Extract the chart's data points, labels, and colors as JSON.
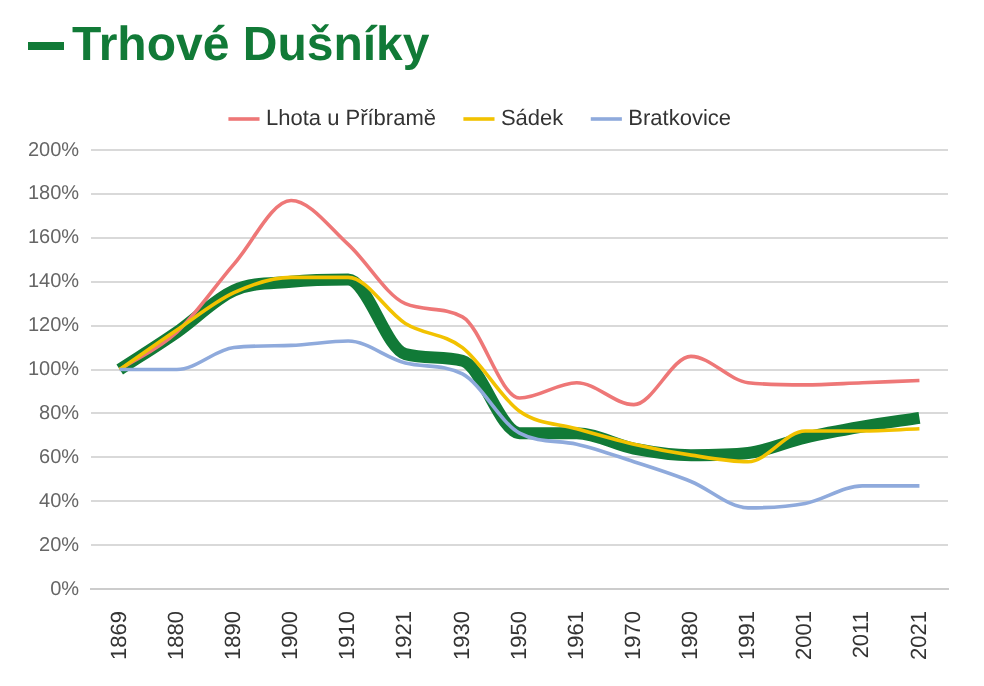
{
  "chart_data": {
    "type": "line",
    "categories": [
      "1869",
      "1880",
      "1890",
      "1900",
      "1910",
      "1921",
      "1930",
      "1950",
      "1961",
      "1970",
      "1980",
      "1991",
      "2001",
      "2011",
      "2021"
    ],
    "series": [
      {
        "name": "Trhové Dušníky",
        "color": "#117a37",
        "values": [
          100,
          117,
          136,
          140,
          141,
          107,
          104,
          71,
          71,
          64,
          61,
          62,
          69,
          74,
          78
        ]
      },
      {
        "name": "Lhota u Příbramě",
        "color": "#ee7777",
        "values": [
          100,
          117,
          148,
          177,
          157,
          130,
          124,
          87,
          94,
          84,
          106,
          94,
          93,
          94,
          95
        ]
      },
      {
        "name": "Sádek",
        "color": "#f2c200",
        "values": [
          100,
          118,
          135,
          142,
          142,
          121,
          110,
          81,
          73,
          66,
          61,
          58,
          72,
          72,
          73
        ]
      },
      {
        "name": "Bratkovice",
        "color": "#8faadc",
        "values": [
          100,
          100,
          110,
          111,
          113,
          103,
          98,
          71,
          66,
          58,
          49,
          37,
          39,
          47,
          47
        ]
      }
    ],
    "ylim": [
      0,
      200
    ],
    "yticks": [
      {
        "value": 0,
        "label": "0%"
      },
      {
        "value": 20,
        "label": "20%"
      },
      {
        "value": 40,
        "label": "40%"
      },
      {
        "value": 60,
        "label": "60%"
      },
      {
        "value": 80,
        "label": "80%"
      },
      {
        "value": 100,
        "label": "100%"
      },
      {
        "value": 120,
        "label": "120%"
      },
      {
        "value": 140,
        "label": "140%"
      },
      {
        "value": 160,
        "label": "160%"
      },
      {
        "value": 180,
        "label": "180%"
      },
      {
        "value": 200,
        "label": "200%"
      }
    ],
    "grid": "y",
    "legend": "top",
    "marker": "none",
    "line_style": "solid"
  }
}
